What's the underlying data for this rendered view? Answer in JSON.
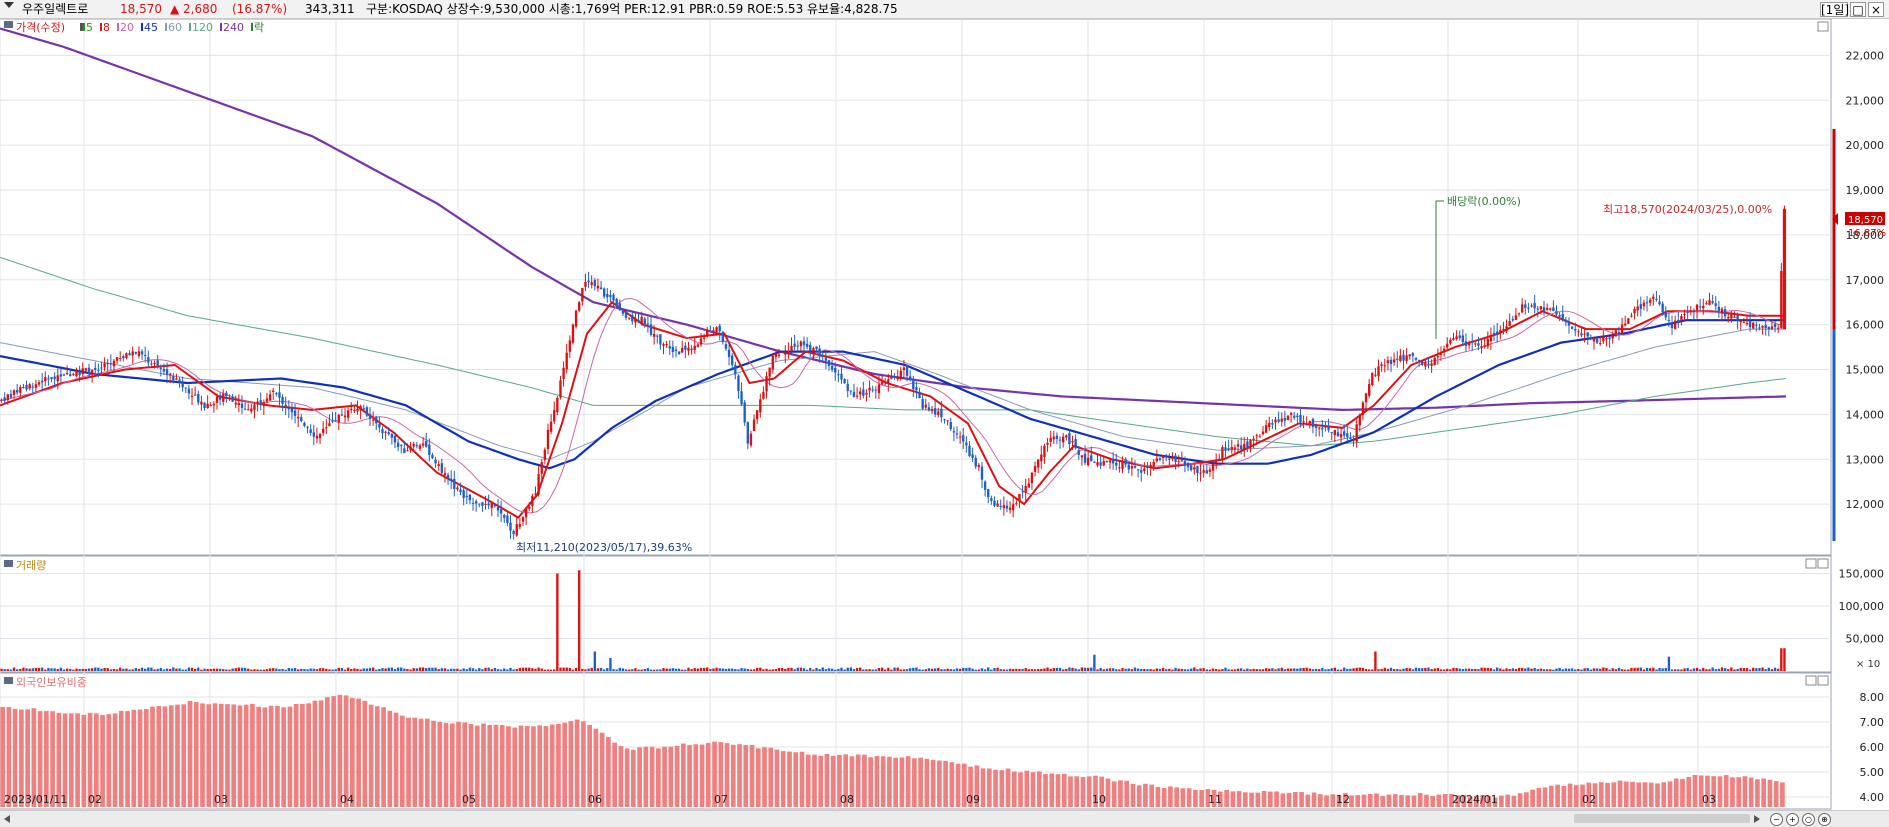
{
  "header": {
    "stock_name": "우주일렉트로",
    "price": "18,570",
    "change": "▲ 2,680",
    "change_pct": "(16.87%)",
    "volume": "343,311",
    "info": "구분:KOSDAQ 상장수:9,530,000 시총:1,769억 PER:12.91 PBR:0.59 ROE:5.53 유보율:4,828.75",
    "period": "[1일]"
  },
  "legend": {
    "price_label": "가격(수정)",
    "ma": [
      {
        "label": "5",
        "color": "#1a9e1a"
      },
      {
        "label": "8",
        "color": "#dd1111"
      },
      {
        "label": "20",
        "color": "#cc66aa"
      },
      {
        "label": "45",
        "color": "#1030b8"
      },
      {
        "label": "60",
        "color": "#8899bb"
      },
      {
        "label": "120",
        "color": "#55aa88"
      },
      {
        "label": "240",
        "color": "#7733aa"
      }
    ],
    "ex_label": "락",
    "volume_label": "거래량",
    "foreign_label": "외국인보유비중"
  },
  "annotations": {
    "dividend": "배당락(0.00%)",
    "high": "최고18,570(2024/03/25),0.00%",
    "low": "최저11,210(2023/05/17),39.63%",
    "price_tag": "18,570",
    "pct_tag": "16.87%",
    "vol_unit": "× 10"
  },
  "colors": {
    "up": "#dd1111",
    "down": "#1f5fc8",
    "foreign_bar": "#f08080",
    "grid": "#dfe4ea"
  },
  "chart_data": {
    "type": "candlestick",
    "x_ticks": [
      "2023/01/11",
      "02",
      "03",
      "04",
      "05",
      "06",
      "07",
      "08",
      "09",
      "10",
      "11",
      "12",
      "2024/01",
      "02",
      "03"
    ],
    "price_axis": {
      "min": 11000,
      "max": 22500,
      "ticks": [
        "22,000",
        "21,000",
        "20,000",
        "19,000",
        "18,000",
        "17,000",
        "16,000",
        "15,000",
        "14,000",
        "13,000",
        "12,000"
      ]
    },
    "volume_axis": {
      "ticks": [
        "150,000",
        "100,000",
        "50,000"
      ]
    },
    "foreign_axis": {
      "ticks": [
        "8.00",
        "7.00",
        "6.00",
        "5.00",
        "4.00"
      ]
    },
    "price_path": [
      [
        0,
        14300
      ],
      [
        12,
        14700
      ],
      [
        20,
        14900
      ],
      [
        32,
        15000
      ],
      [
        44,
        15400
      ],
      [
        52,
        15000
      ],
      [
        60,
        14600
      ],
      [
        66,
        14200
      ],
      [
        72,
        14400
      ],
      [
        80,
        14100
      ],
      [
        88,
        14500
      ],
      [
        95,
        14000
      ],
      [
        102,
        13500
      ],
      [
        108,
        13900
      ],
      [
        115,
        14200
      ],
      [
        122,
        13700
      ],
      [
        130,
        13200
      ],
      [
        136,
        13400
      ],
      [
        142,
        12700
      ],
      [
        150,
        12100
      ],
      [
        158,
        12000
      ],
      [
        165,
        11400
      ],
      [
        168,
        11700
      ],
      [
        172,
        12300
      ],
      [
        176,
        13600
      ],
      [
        180,
        14700
      ],
      [
        184,
        16000
      ],
      [
        188,
        17000
      ],
      [
        192,
        16800
      ],
      [
        196,
        16600
      ],
      [
        200,
        16200
      ],
      [
        206,
        16100
      ],
      [
        212,
        15600
      ],
      [
        218,
        15400
      ],
      [
        224,
        15600
      ],
      [
        230,
        16000
      ],
      [
        236,
        14900
      ],
      [
        240,
        13400
      ],
      [
        244,
        14300
      ],
      [
        248,
        15300
      ],
      [
        256,
        15600
      ],
      [
        262,
        15400
      ],
      [
        268,
        15000
      ],
      [
        274,
        14400
      ],
      [
        282,
        14600
      ],
      [
        290,
        15000
      ],
      [
        296,
        14200
      ],
      [
        302,
        14000
      ],
      [
        308,
        13500
      ],
      [
        314,
        12800
      ],
      [
        318,
        12000
      ],
      [
        322,
        11900
      ],
      [
        326,
        12100
      ],
      [
        330,
        12500
      ],
      [
        336,
        13400
      ],
      [
        342,
        13500
      ],
      [
        348,
        13000
      ],
      [
        354,
        12900
      ],
      [
        360,
        12900
      ],
      [
        366,
        12700
      ],
      [
        372,
        13000
      ],
      [
        378,
        13000
      ],
      [
        384,
        12700
      ],
      [
        388,
        12700
      ],
      [
        392,
        13200
      ],
      [
        400,
        13300
      ],
      [
        406,
        13700
      ],
      [
        414,
        14000
      ],
      [
        420,
        13800
      ],
      [
        428,
        13600
      ],
      [
        434,
        13500
      ],
      [
        440,
        14900
      ],
      [
        446,
        15200
      ],
      [
        452,
        15300
      ],
      [
        458,
        15100
      ],
      [
        466,
        15700
      ],
      [
        474,
        15500
      ],
      [
        482,
        15900
      ],
      [
        488,
        16400
      ],
      [
        494,
        16400
      ],
      [
        500,
        16200
      ],
      [
        506,
        15800
      ],
      [
        512,
        15600
      ],
      [
        518,
        15800
      ],
      [
        524,
        16300
      ],
      [
        530,
        16600
      ],
      [
        536,
        16000
      ],
      [
        542,
        16300
      ],
      [
        548,
        16500
      ],
      [
        554,
        16200
      ],
      [
        560,
        16000
      ],
      [
        566,
        15900
      ],
      [
        570,
        15900
      ],
      [
        572,
        18570
      ]
    ],
    "ma_paths": {
      "ma8": [
        [
          0,
          14200
        ],
        [
          20,
          14700
        ],
        [
          40,
          15000
        ],
        [
          56,
          15100
        ],
        [
          70,
          14400
        ],
        [
          86,
          14200
        ],
        [
          100,
          14100
        ],
        [
          114,
          14200
        ],
        [
          126,
          13600
        ],
        [
          140,
          12700
        ],
        [
          156,
          12100
        ],
        [
          166,
          11700
        ],
        [
          172,
          12200
        ],
        [
          180,
          13800
        ],
        [
          188,
          15800
        ],
        [
          196,
          16500
        ],
        [
          206,
          16000
        ],
        [
          220,
          15700
        ],
        [
          232,
          15800
        ],
        [
          240,
          14700
        ],
        [
          248,
          14800
        ],
        [
          258,
          15400
        ],
        [
          270,
          15200
        ],
        [
          284,
          14700
        ],
        [
          298,
          14400
        ],
        [
          310,
          13800
        ],
        [
          320,
          12400
        ],
        [
          328,
          12000
        ],
        [
          336,
          12700
        ],
        [
          344,
          13300
        ],
        [
          356,
          13000
        ],
        [
          370,
          12800
        ],
        [
          382,
          12900
        ],
        [
          392,
          13000
        ],
        [
          404,
          13400
        ],
        [
          416,
          13800
        ],
        [
          430,
          13700
        ],
        [
          440,
          14200
        ],
        [
          452,
          15100
        ],
        [
          466,
          15500
        ],
        [
          480,
          15800
        ],
        [
          494,
          16300
        ],
        [
          508,
          15900
        ],
        [
          522,
          15900
        ],
        [
          534,
          16300
        ],
        [
          548,
          16300
        ],
        [
          560,
          16200
        ],
        [
          572,
          16200
        ]
      ],
      "ma45": [
        [
          0,
          15300
        ],
        [
          30,
          14900
        ],
        [
          60,
          14700
        ],
        [
          90,
          14800
        ],
        [
          110,
          14600
        ],
        [
          130,
          14200
        ],
        [
          150,
          13400
        ],
        [
          166,
          13000
        ],
        [
          176,
          12800
        ],
        [
          184,
          13000
        ],
        [
          196,
          13700
        ],
        [
          210,
          14300
        ],
        [
          230,
          14900
        ],
        [
          250,
          15400
        ],
        [
          270,
          15400
        ],
        [
          290,
          15100
        ],
        [
          310,
          14500
        ],
        [
          330,
          13900
        ],
        [
          350,
          13500
        ],
        [
          370,
          13100
        ],
        [
          390,
          12900
        ],
        [
          406,
          12900
        ],
        [
          420,
          13100
        ],
        [
          440,
          13600
        ],
        [
          460,
          14400
        ],
        [
          480,
          15100
        ],
        [
          500,
          15600
        ],
        [
          520,
          15800
        ],
        [
          540,
          16100
        ],
        [
          560,
          16100
        ],
        [
          572,
          16100
        ]
      ],
      "ma240": [
        [
          0,
          22600
        ],
        [
          20,
          22200
        ],
        [
          60,
          21200
        ],
        [
          100,
          20200
        ],
        [
          140,
          18700
        ],
        [
          170,
          17300
        ],
        [
          190,
          16500
        ],
        [
          220,
          16000
        ],
        [
          250,
          15400
        ],
        [
          280,
          14900
        ],
        [
          310,
          14600
        ],
        [
          340,
          14400
        ],
        [
          370,
          14300
        ],
        [
          400,
          14200
        ],
        [
          430,
          14100
        ],
        [
          460,
          14150
        ],
        [
          490,
          14250
        ],
        [
          520,
          14300
        ],
        [
          545,
          14350
        ],
        [
          572,
          14400
        ]
      ],
      "ma120": [
        [
          0,
          17500
        ],
        [
          30,
          16800
        ],
        [
          60,
          16200
        ],
        [
          100,
          15700
        ],
        [
          140,
          15100
        ],
        [
          170,
          14600
        ],
        [
          190,
          14200
        ],
        [
          230,
          14200
        ],
        [
          260,
          14200
        ],
        [
          290,
          14100
        ],
        [
          330,
          14100
        ],
        [
          360,
          13800
        ],
        [
          390,
          13500
        ],
        [
          420,
          13300
        ],
        [
          440,
          13400
        ],
        [
          470,
          13700
        ],
        [
          500,
          14000
        ],
        [
          530,
          14400
        ],
        [
          560,
          14700
        ],
        [
          572,
          14800
        ]
      ],
      "ma60": [
        [
          0,
          15600
        ],
        [
          30,
          15200
        ],
        [
          60,
          14800
        ],
        [
          100,
          14600
        ],
        [
          130,
          14100
        ],
        [
          160,
          13300
        ],
        [
          176,
          13000
        ],
        [
          190,
          13400
        ],
        [
          220,
          14600
        ],
        [
          250,
          15200
        ],
        [
          280,
          15400
        ],
        [
          300,
          14900
        ],
        [
          330,
          14100
        ],
        [
          360,
          13500
        ],
        [
          390,
          13200
        ],
        [
          420,
          13300
        ],
        [
          440,
          13600
        ],
        [
          470,
          14200
        ],
        [
          500,
          14900
        ],
        [
          530,
          15500
        ],
        [
          560,
          15900
        ],
        [
          572,
          15900
        ]
      ]
    },
    "volume_spikes": [
      [
        178,
        150000
      ],
      [
        185,
        155000
      ],
      [
        190,
        30000
      ],
      [
        195,
        20000
      ],
      [
        350,
        25000
      ],
      [
        440,
        30000
      ],
      [
        534,
        22000
      ],
      [
        570,
        35000
      ]
    ],
    "foreign_pct": [
      [
        0,
        7.6
      ],
      [
        30,
        7.3
      ],
      [
        60,
        7.8
      ],
      [
        90,
        7.6
      ],
      [
        110,
        8.1
      ],
      [
        130,
        7.2
      ],
      [
        150,
        6.9
      ],
      [
        170,
        6.8
      ],
      [
        185,
        7.1
      ],
      [
        200,
        5.9
      ],
      [
        230,
        6.2
      ],
      [
        260,
        5.7
      ],
      [
        290,
        5.6
      ],
      [
        320,
        5.1
      ],
      [
        350,
        4.8
      ],
      [
        370,
        4.4
      ],
      [
        400,
        4.2
      ],
      [
        430,
        4.1
      ],
      [
        460,
        4.1
      ],
      [
        480,
        4.0
      ],
      [
        495,
        4.4
      ],
      [
        510,
        4.6
      ],
      [
        530,
        4.6
      ],
      [
        545,
        4.9
      ],
      [
        560,
        4.8
      ],
      [
        572,
        4.6
      ]
    ]
  }
}
